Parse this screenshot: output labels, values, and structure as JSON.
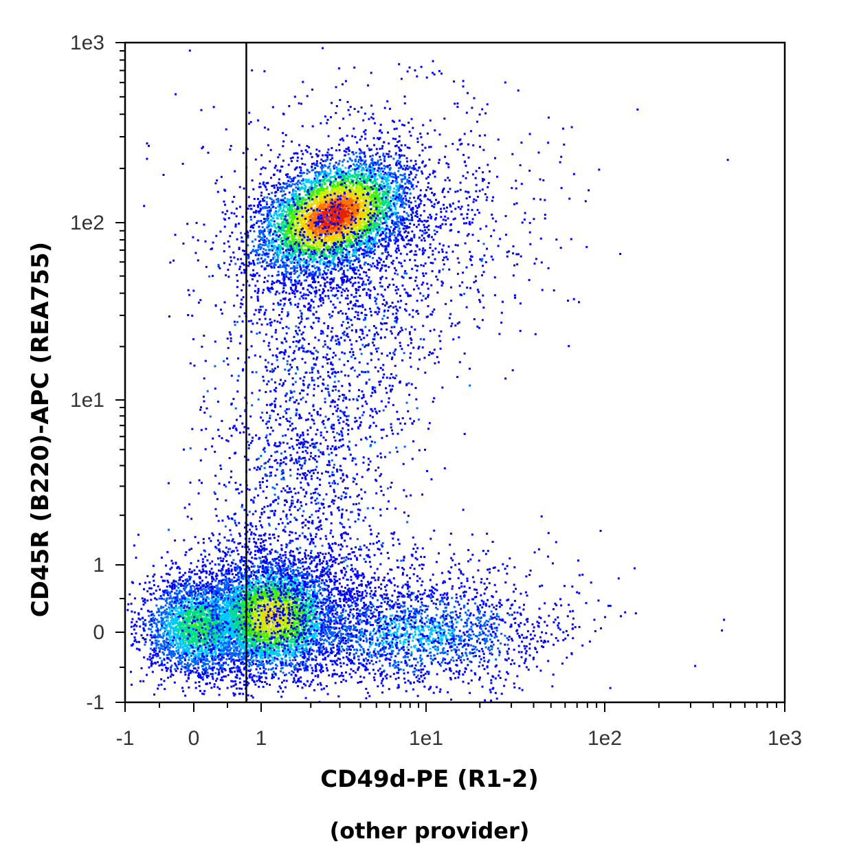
{
  "chart_data": {
    "type": "scatter",
    "subtype": "flow-cytometry-density-dot-plot",
    "xlabel": "CD49d-PE (R1-2)",
    "xlabel_note": "(other provider)",
    "ylabel": "CD45R (B220)-APC (REA755)",
    "x_scale": "biexponential",
    "y_scale": "biexponential",
    "xlim": [
      -1,
      1000
    ],
    "ylim": [
      -1,
      1000
    ],
    "x_ticks": [
      {
        "value": -1,
        "label": "-1"
      },
      {
        "value": 0,
        "label": "0"
      },
      {
        "value": 1,
        "label": "1"
      },
      {
        "value": 10,
        "label": "1e1"
      },
      {
        "value": 100,
        "label": "1e2"
      },
      {
        "value": 1000,
        "label": "1e3"
      }
    ],
    "y_ticks": [
      {
        "value": -1,
        "label": "-1"
      },
      {
        "value": 0,
        "label": "0"
      },
      {
        "value": 1,
        "label": "1"
      },
      {
        "value": 10,
        "label": "1e1"
      },
      {
        "value": 100,
        "label": "1e2"
      },
      {
        "value": 1000,
        "label": "1e3"
      }
    ],
    "gate_x": 0.78,
    "grid": false,
    "legend": "none",
    "density_colors": [
      "#0000ff",
      "#0060ff",
      "#00c8ff",
      "#00e080",
      "#40f000",
      "#c8f000",
      "#ffd000",
      "#ff7000",
      "#e82000"
    ],
    "populations": [
      {
        "x_center": 0.1,
        "y_center": 0.1,
        "relative_density": 0.45
      },
      {
        "x_center": 1.15,
        "y_center": 0.25,
        "relative_density": 0.7
      },
      {
        "x_center": 2.7,
        "y_center": 110,
        "relative_density": 1.0
      },
      {
        "x_center": 8,
        "y_center": 0.0,
        "relative_density": 0.25
      }
    ]
  }
}
